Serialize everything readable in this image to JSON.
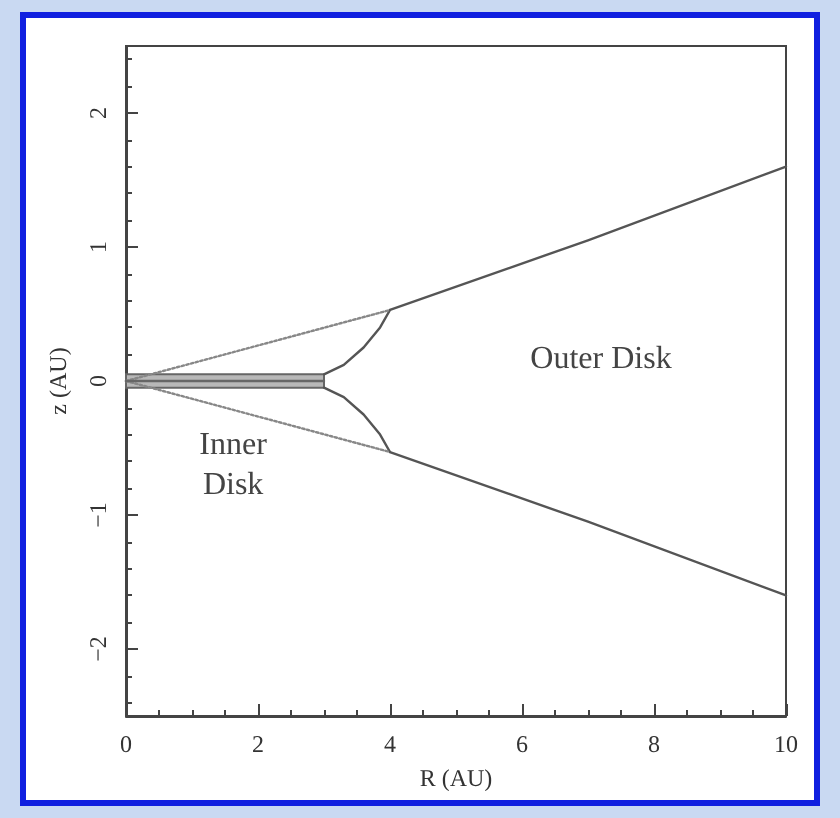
{
  "chart_data": {
    "type": "line",
    "xlabel": "R (AU)",
    "ylabel": "z (AU)",
    "xlim": [
      0,
      10
    ],
    "xticks": [
      0,
      2,
      4,
      6,
      8,
      10
    ],
    "ylim": [
      -2.5,
      2.5
    ],
    "yticks": [
      -2,
      -1,
      0,
      1,
      2
    ],
    "grid": false,
    "marker": "none",
    "series": [
      {
        "color": "#555555",
        "x": [
          4,
          7,
          10
        ],
        "values": [
          0.53,
          1.05,
          1.6
        ]
      },
      {
        "color": "#555555",
        "x": [
          4,
          7,
          10
        ],
        "values": [
          -0.53,
          -1.05,
          -1.6
        ]
      },
      {
        "color": "#555555",
        "x": [
          3,
          3.3,
          3.6,
          3.85,
          4
        ],
        "values": [
          0.05,
          0.12,
          0.25,
          0.4,
          0.53
        ]
      },
      {
        "color": "#555555",
        "x": [
          3,
          3.3,
          3.6,
          3.85,
          4
        ],
        "values": [
          -0.05,
          -0.12,
          -0.25,
          -0.4,
          -0.53
        ]
      },
      {
        "color": "#888888",
        "line_style": "dotted",
        "x": [
          0,
          4
        ],
        "values": [
          0,
          0.53
        ]
      },
      {
        "color": "#888888",
        "line_style": "dotted",
        "x": [
          0,
          4
        ],
        "values": [
          0,
          -0.53
        ]
      },
      {
        "color": "#666666",
        "x": [
          0,
          3
        ],
        "values": [
          0,
          0
        ],
        "lower": [
          -0.05,
          -0.05
        ],
        "upper": [
          0.05,
          0.05
        ]
      }
    ],
    "annotations": [
      "Inner\nDisk",
      "Outer Disk"
    ]
  }
}
